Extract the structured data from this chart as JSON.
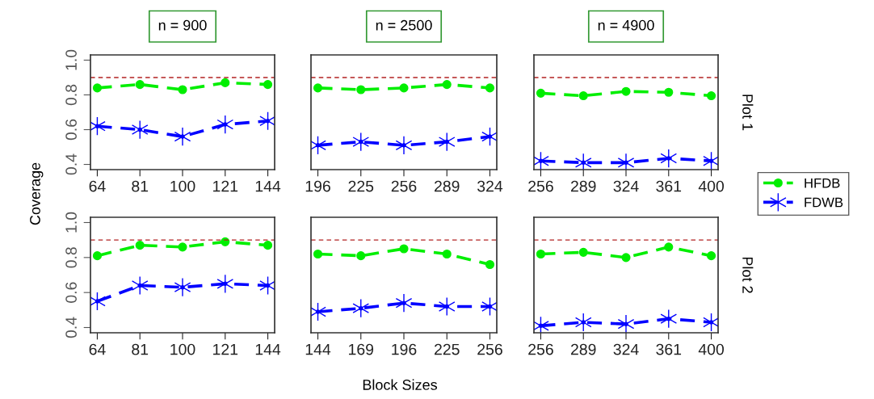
{
  "chart_data": [
    {
      "type": "line",
      "title": "n = 900",
      "ylabel": "Coverage",
      "categories": [
        "64",
        "81",
        "100",
        "121",
        "144"
      ],
      "ylim": [
        0.37,
        1.03
      ],
      "yticks": [
        0.4,
        0.6,
        0.8,
        {
          "value": 1,
          "label": "1.0"
        }
      ],
      "line_style": "dashed",
      "grid": false,
      "legend": "right",
      "series": [
        {
          "name": "HFDB",
          "color": "#00ee00",
          "marker": "circle",
          "values": [
            0.84,
            0.86,
            0.83,
            0.87,
            0.86
          ]
        },
        {
          "name": "FDWB",
          "color": "#0000ff",
          "marker": "cross",
          "values": [
            0.62,
            0.6,
            0.56,
            0.63,
            0.65
          ]
        }
      ],
      "ref_lines": [
        {
          "axis": "y",
          "value": 0.9,
          "color": "#b22222",
          "line_style": "dashed"
        }
      ]
    },
    {
      "type": "line",
      "title": "n = 2500",
      "categories": [
        "196",
        "225",
        "256",
        "289",
        "324"
      ],
      "ylim": [
        0.37,
        1.03
      ],
      "tick_labels": "x",
      "line_style": "dashed",
      "grid": false,
      "series": [
        {
          "color": "#00ee00",
          "marker": "circle",
          "values": [
            0.84,
            0.83,
            0.84,
            0.86,
            0.84
          ]
        },
        {
          "color": "#0000ff",
          "marker": "cross",
          "values": [
            0.51,
            0.53,
            0.51,
            0.53,
            0.56
          ]
        }
      ],
      "ref_lines": [
        {
          "axis": "y",
          "value": 0.9,
          "color": "#b22222",
          "line_style": "dashed"
        }
      ]
    },
    {
      "type": "line",
      "title": "n = 4900",
      "categories": [
        "256",
        "289",
        "324",
        "361",
        "400"
      ],
      "ylim": [
        0.37,
        1.03
      ],
      "tick_labels": "x",
      "line_style": "dashed",
      "grid": false,
      "annotations": [
        "Plot 1"
      ],
      "series": [
        {
          "color": "#00ee00",
          "marker": "circle",
          "values": [
            0.81,
            0.795,
            0.82,
            0.815,
            0.795
          ]
        },
        {
          "color": "#0000ff",
          "marker": "cross",
          "values": [
            0.42,
            0.41,
            0.41,
            0.435,
            0.42
          ]
        }
      ],
      "ref_lines": [
        {
          "axis": "y",
          "value": 0.9,
          "color": "#b22222",
          "line_style": "dashed"
        }
      ]
    },
    {
      "type": "line",
      "categories": [
        "64",
        "81",
        "100",
        "121",
        "144"
      ],
      "ylim": [
        0.37,
        1.03
      ],
      "yticks": [
        0.4,
        0.6,
        0.8,
        {
          "value": 1,
          "label": "1.0"
        }
      ],
      "line_style": "dashed",
      "grid": false,
      "series": [
        {
          "color": "#00ee00",
          "marker": "circle",
          "values": [
            0.81,
            0.87,
            0.86,
            0.89,
            0.87
          ]
        },
        {
          "color": "#0000ff",
          "marker": "cross",
          "values": [
            0.55,
            0.64,
            0.63,
            0.65,
            0.64
          ]
        }
      ],
      "ref_lines": [
        {
          "axis": "y",
          "value": 0.9,
          "color": "#b22222",
          "line_style": "dashed"
        }
      ]
    },
    {
      "type": "line",
      "xlabel": "Block Sizes",
      "categories": [
        "144",
        "169",
        "196",
        "225",
        "256"
      ],
      "ylim": [
        0.37,
        1.03
      ],
      "tick_labels": "x",
      "line_style": "dashed",
      "grid": false,
      "series": [
        {
          "color": "#00ee00",
          "marker": "circle",
          "values": [
            0.82,
            0.81,
            0.85,
            0.82,
            0.76
          ]
        },
        {
          "color": "#0000ff",
          "marker": "cross",
          "values": [
            0.49,
            0.51,
            0.54,
            0.52,
            0.52
          ]
        }
      ],
      "ref_lines": [
        {
          "axis": "y",
          "value": 0.9,
          "color": "#b22222",
          "line_style": "dashed"
        }
      ]
    },
    {
      "type": "line",
      "categories": [
        "256",
        "289",
        "324",
        "361",
        "400"
      ],
      "ylim": [
        0.37,
        1.03
      ],
      "tick_labels": "x",
      "line_style": "dashed",
      "grid": false,
      "annotations": [
        "Plot 2"
      ],
      "series": [
        {
          "color": "#00ee00",
          "marker": "circle",
          "values": [
            0.82,
            0.83,
            0.8,
            0.86,
            0.81
          ]
        },
        {
          "color": "#0000ff",
          "marker": "cross",
          "values": [
            0.41,
            0.43,
            0.42,
            0.45,
            0.43
          ]
        }
      ],
      "ref_lines": [
        {
          "axis": "y",
          "value": 0.9,
          "color": "#b22222",
          "line_style": "dashed"
        }
      ]
    }
  ]
}
